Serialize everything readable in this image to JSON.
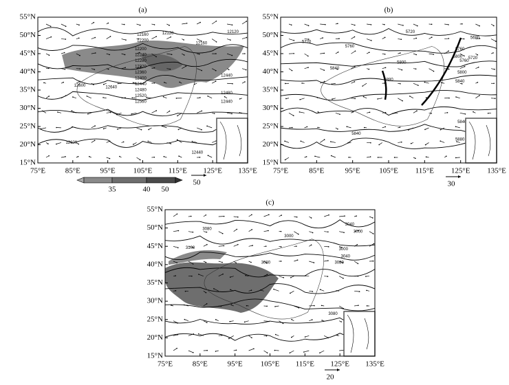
{
  "panels": [
    {
      "label": "(a)",
      "lat_labels": [
        "55°N",
        "50°N",
        "45°N",
        "40°N",
        "35°N",
        "30°N",
        "25°N",
        "20°N",
        "15°N"
      ],
      "lon_labels": [
        "75°E",
        "85°E",
        "95°E",
        "105°E",
        "115°E",
        "125°E",
        "135°E"
      ],
      "contour_labels": [
        12160,
        12120,
        12120,
        12200,
        12160,
        12200,
        12240,
        12280,
        12320,
        12360,
        12400,
        12440,
        12480,
        12520,
        12560,
        12600,
        12640,
        12440,
        12480,
        12440,
        12440,
        12600
      ],
      "ref_vector": "50"
    },
    {
      "label": "(b)",
      "lat_labels": [
        "55°N",
        "50°N",
        "45°N",
        "40°N",
        "35°N",
        "30°N",
        "25°N",
        "20°N",
        "15°N"
      ],
      "lon_labels": [
        "75°E",
        "85°E",
        "95°E",
        "105°E",
        "115°E",
        "125°E",
        "135°E"
      ],
      "contour_labels": [
        5720,
        5720,
        5760,
        5680,
        5800,
        5760,
        5840,
        5800,
        5720,
        5760,
        5880,
        5800,
        5840,
        5840,
        5840,
        5880
      ],
      "ref_vector": "30"
    },
    {
      "label": "(c)",
      "lat_labels": [
        "55°N",
        "50°N",
        "45°N",
        "40°N",
        "35°N",
        "30°N",
        "25°N",
        "20°N",
        "15°N"
      ],
      "lon_labels": [
        "75°E",
        "85°E",
        "95°E",
        "105°E",
        "115°E",
        "125°E",
        "135°E"
      ],
      "contour_labels": [
        3080,
        3040,
        3000,
        3000,
        3100,
        3000,
        3040,
        3080,
        3080,
        3080
      ],
      "ref_vector": "20"
    }
  ],
  "colorbar": {
    "labels": [
      "35",
      "40",
      "50"
    ]
  }
}
